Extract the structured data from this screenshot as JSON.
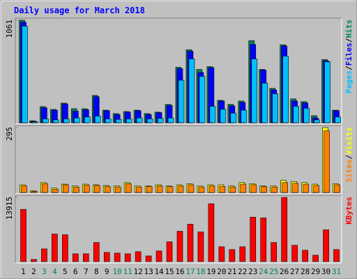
{
  "chart_data": [
    {
      "type": "bar",
      "title": "Daily usage for March 2018",
      "legend_separator": "/",
      "ylim": [
        0,
        1061
      ],
      "yticks": [
        1061
      ],
      "series": [
        {
          "name": "Hits",
          "color": "#00805c",
          "values": [
            1061,
            20,
            167,
            138,
            203,
            145,
            145,
            283,
            130,
            95,
            116,
            130,
            95,
            110,
            190,
            574,
            756,
            552,
            581,
            232,
            190,
            225,
            850,
            552,
            356,
            807,
            247,
            218,
            73,
            654,
            130
          ]
        },
        {
          "name": "Files",
          "color": "#0000ff",
          "values": [
            1040,
            15,
            155,
            130,
            195,
            120,
            135,
            270,
            125,
            85,
            110,
            125,
            85,
            105,
            180,
            560,
            740,
            520,
            570,
            225,
            175,
            210,
            810,
            545,
            340,
            795,
            225,
            205,
            50,
            640,
            125
          ]
        },
        {
          "name": "Pages",
          "color": "#00c0ff",
          "values": [
            1000,
            10,
            40,
            30,
            40,
            50,
            60,
            70,
            40,
            35,
            40,
            50,
            40,
            45,
            50,
            440,
            660,
            480,
            170,
            140,
            100,
            130,
            660,
            410,
            300,
            690,
            170,
            150,
            30,
            630,
            60
          ]
        }
      ]
    },
    {
      "type": "bar",
      "ylim": [
        0,
        295
      ],
      "yticks": [
        295
      ],
      "series": [
        {
          "name": "Visits",
          "color": "#ffff00",
          "values": [
            35,
            8,
            45,
            20,
            38,
            30,
            38,
            35,
            32,
            30,
            45,
            30,
            30,
            35,
            30,
            35,
            40,
            30,
            35,
            35,
            30,
            45,
            40,
            30,
            30,
            55,
            50,
            45,
            38,
            295,
            40
          ]
        },
        {
          "name": "Sites",
          "color": "#ff8000",
          "values": [
            30,
            5,
            40,
            15,
            35,
            25,
            33,
            32,
            28,
            25,
            40,
            25,
            28,
            30,
            27,
            30,
            35,
            25,
            30,
            28,
            25,
            38,
            35,
            27,
            25,
            45,
            42,
            38,
            32,
            280,
            35
          ]
        }
      ]
    },
    {
      "type": "bar",
      "ylim": [
        0,
        13915
      ],
      "yticks": [
        13915
      ],
      "categories": [
        1,
        2,
        3,
        4,
        5,
        6,
        7,
        8,
        9,
        10,
        11,
        12,
        13,
        14,
        15,
        16,
        17,
        18,
        19,
        20,
        21,
        22,
        23,
        24,
        25,
        26,
        27,
        28,
        29,
        30,
        31
      ],
      "category_colors": [
        "#000000",
        "#000000",
        "#00805c",
        "#00805c",
        "#000000",
        "#000000",
        "#000000",
        "#000000",
        "#000000",
        "#00805c",
        "#00805c",
        "#000000",
        "#000000",
        "#000000",
        "#000000",
        "#000000",
        "#00805c",
        "#00805c",
        "#000000",
        "#000000",
        "#000000",
        "#000000",
        "#000000",
        "#00805c",
        "#00805c",
        "#000000",
        "#000000",
        "#000000",
        "#000000",
        "#000000",
        "#00805c"
      ],
      "series": [
        {
          "name": "KBytes",
          "color": "#ff0000",
          "values": [
            11315,
            460,
            2750,
            5960,
            5810,
            1680,
            1680,
            4130,
            1990,
            1835,
            1680,
            2140,
            1220,
            2290,
            4280,
            6575,
            8100,
            6420,
            12540,
            3210,
            2600,
            3210,
            9630,
            9480,
            4130,
            13915,
            3520,
            2450,
            1380,
            6880,
            2600
          ]
        }
      ]
    }
  ]
}
